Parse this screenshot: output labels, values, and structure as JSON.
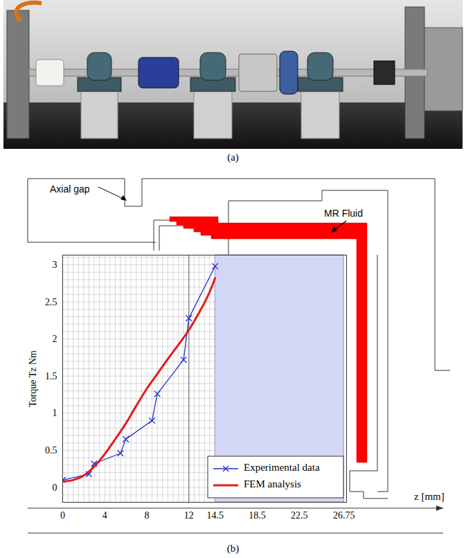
{
  "captions": [
    "(a)",
    "(b)"
  ],
  "chart_data": {
    "type": "line",
    "y_label": "Torque Tz Nm",
    "x_label": "z [mm]",
    "xlim": [
      0,
      27
    ],
    "xticks": [
      0,
      4,
      8,
      12,
      14.5,
      18.5,
      22.5,
      26.75
    ],
    "ylim": [
      -0.2,
      3.13
    ],
    "yticks": [
      0,
      0.5,
      1,
      1.5,
      2,
      2.5,
      3
    ],
    "grid": true,
    "legend": "bottom-right",
    "shaded_region": [
      14.5,
      26.75
    ],
    "reference_line": 12,
    "annotations": [
      "Axial gap",
      "MR Fluid"
    ],
    "series": [
      {
        "name": "Experimental data",
        "color": "#2233cc",
        "marker": "x",
        "line_style": "solid",
        "x": [
          0,
          2.5,
          3,
          5.5,
          6,
          8.5,
          9,
          11.5,
          12,
          14.5
        ],
        "values": [
          0.1,
          0.18,
          0.32,
          0.46,
          0.65,
          0.9,
          1.26,
          1.72,
          2.28,
          2.98
        ]
      },
      {
        "name": "FEM analysis",
        "color": "#e41a1c",
        "marker": "none",
        "line_style": "solid",
        "x": [
          0,
          1,
          2,
          3,
          4,
          5,
          6,
          7,
          8,
          9,
          10,
          11,
          12,
          13,
          14,
          14.5
        ],
        "values": [
          0.08,
          0.1,
          0.16,
          0.28,
          0.45,
          0.65,
          0.86,
          1.1,
          1.33,
          1.53,
          1.73,
          1.92,
          2.12,
          2.36,
          2.64,
          2.82
        ]
      }
    ]
  }
}
